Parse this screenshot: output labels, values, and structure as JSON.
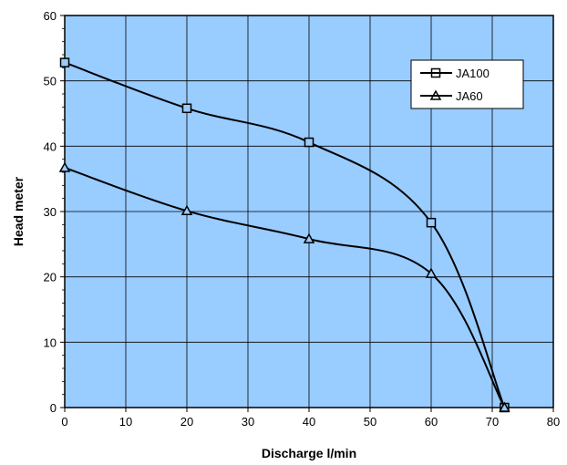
{
  "chart_data": {
    "type": "line",
    "title": "",
    "xlabel": "Discharge l/min",
    "ylabel": "Head meter",
    "xlim": [
      0,
      80
    ],
    "ylim": [
      0,
      60
    ],
    "xticks": [
      0,
      10,
      20,
      30,
      40,
      50,
      60,
      70,
      80
    ],
    "yticks": [
      0,
      10,
      20,
      30,
      40,
      50,
      60
    ],
    "grid": true,
    "legend_position": "top-right",
    "colors": {
      "plot_background": "#99ccff",
      "line": "#000000",
      "grid": "#000000"
    },
    "series": [
      {
        "name": "JA100",
        "marker": "square",
        "x": [
          0,
          20,
          40,
          60,
          72
        ],
        "y": [
          52.8,
          45.8,
          40.6,
          28.3,
          0
        ]
      },
      {
        "name": "JA60",
        "marker": "triangle",
        "x": [
          0,
          20,
          40,
          60,
          72
        ],
        "y": [
          36.7,
          30.1,
          25.8,
          20.5,
          0
        ]
      }
    ]
  }
}
